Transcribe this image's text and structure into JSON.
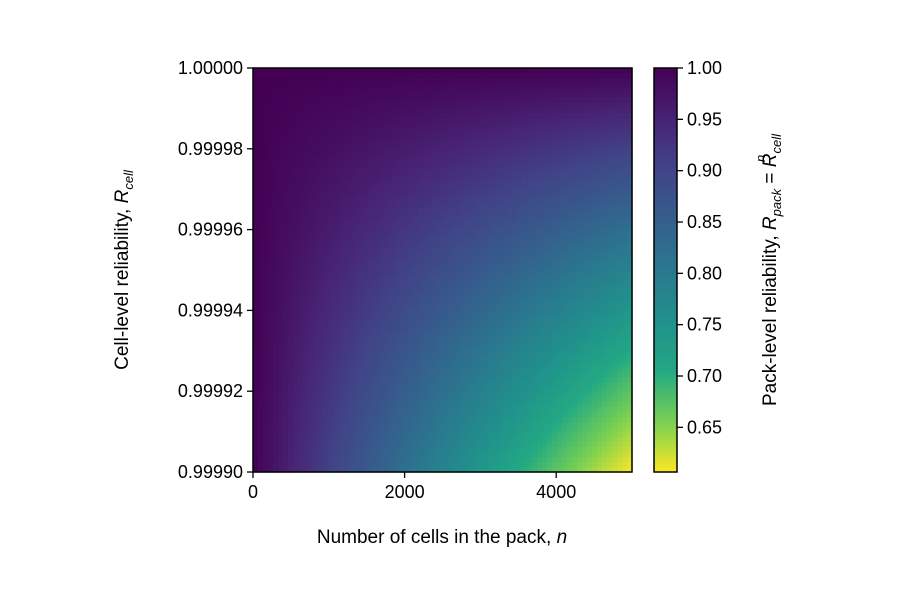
{
  "chart_data": {
    "type": "heatmap",
    "title": "",
    "formula": "R_pack = R_cell^n",
    "x": {
      "label": "Number of cells in the pack, ",
      "label_var": "n",
      "range": [
        0,
        5000
      ],
      "ticks": [
        0,
        2000,
        4000
      ],
      "tick_labels": [
        "0",
        "2000",
        "4000"
      ]
    },
    "y": {
      "label": "Cell-level reliability, ",
      "label_var": "R",
      "label_sub": "cell",
      "range": [
        0.9999,
        1.0
      ],
      "ticks": [
        0.9999,
        0.99992,
        0.99994,
        0.99996,
        0.99998,
        1.0
      ],
      "tick_labels": [
        "0.99990",
        "0.99992",
        "0.99994",
        "0.99996",
        "0.99998",
        "1.00000"
      ]
    },
    "colorbar": {
      "label": "Pack-level reliability, ",
      "label_var": "R",
      "label_sub": "pack",
      "label_eq": " = ",
      "label_var2": "R",
      "label_sub2": "cell",
      "label_sup2": "n",
      "range": [
        0.6065,
        1.0
      ],
      "ticks": [
        0.65,
        0.7,
        0.75,
        0.8,
        0.85,
        0.9,
        0.95,
        1.0
      ],
      "tick_labels": [
        "0.65",
        "0.70",
        "0.75",
        "0.80",
        "0.85",
        "0.90",
        "0.95",
        "1.00"
      ],
      "colormap": "viridis_r"
    }
  }
}
